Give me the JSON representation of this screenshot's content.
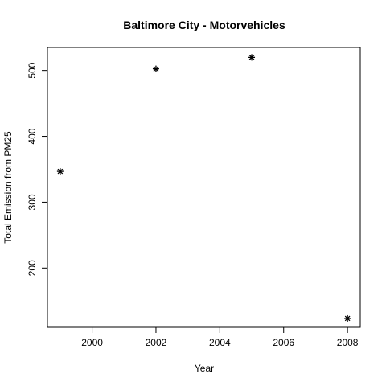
{
  "chart_data": {
    "type": "scatter",
    "title": "Baltimore City - Motorvehicles",
    "xlabel": "Year",
    "ylabel": "Total Emission from PM25",
    "x": [
      1999,
      2002,
      2005,
      2008
    ],
    "y": [
      346.82,
      502.5,
      519.9,
      123.5
    ],
    "xlim": [
      1998.6,
      2008.4
    ],
    "ylim": [
      110,
      535
    ],
    "xticks": [
      2000,
      2002,
      2004,
      2006,
      2008
    ],
    "yticks": [
      200,
      300,
      400,
      500
    ],
    "marker": "asterisk",
    "grid": false,
    "legend": "none"
  }
}
